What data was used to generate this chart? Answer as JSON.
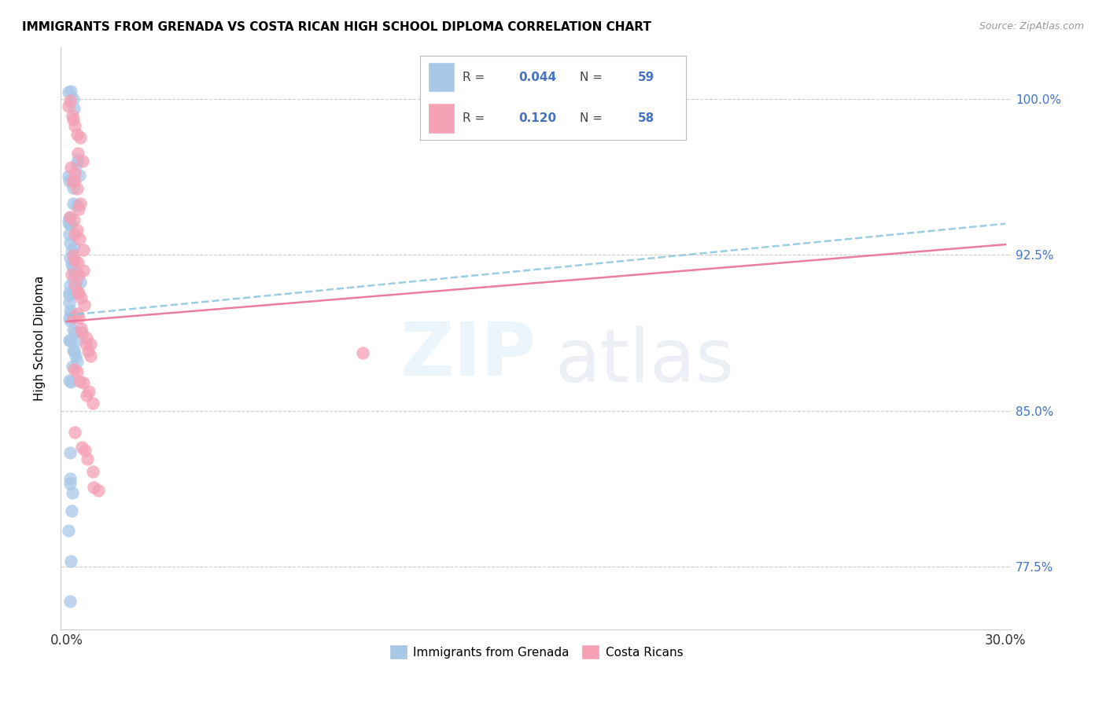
{
  "title": "IMMIGRANTS FROM GRENADA VS COSTA RICAN HIGH SCHOOL DIPLOMA CORRELATION CHART",
  "source": "Source: ZipAtlas.com",
  "ylabel": "High School Diploma",
  "yticks": [
    0.775,
    0.85,
    0.925,
    1.0
  ],
  "ytick_labels": [
    "77.5%",
    "85.0%",
    "92.5%",
    "100.0%"
  ],
  "color_blue": "#a8c8e8",
  "color_pink": "#f4a0b5",
  "trendline_blue": "#90c8e0",
  "trendline_pink": "#e87090",
  "xlim": [
    -0.002,
    0.302
  ],
  "ylim": [
    0.745,
    1.025
  ],
  "blue_x": [
    0.001,
    0.001,
    0.002,
    0.002,
    0.003,
    0.003,
    0.004,
    0.001,
    0.001,
    0.002,
    0.002,
    0.003,
    0.001,
    0.001,
    0.001,
    0.001,
    0.001,
    0.001,
    0.002,
    0.002,
    0.001,
    0.001,
    0.002,
    0.003,
    0.002,
    0.003,
    0.002,
    0.004,
    0.003,
    0.001,
    0.001,
    0.002,
    0.001,
    0.001,
    0.001,
    0.001,
    0.002,
    0.001,
    0.001,
    0.003,
    0.002,
    0.004,
    0.001,
    0.001,
    0.002,
    0.002,
    0.003,
    0.003,
    0.002,
    0.001,
    0.001,
    0.001,
    0.001,
    0.001,
    0.002,
    0.002,
    0.001,
    0.001,
    0.001
  ],
  "blue_y": [
    1.002,
    1.001,
    0.999,
    0.998,
    0.972,
    0.968,
    0.965,
    0.96,
    0.958,
    0.955,
    0.95,
    0.947,
    0.945,
    0.942,
    0.94,
    0.938,
    0.935,
    0.933,
    0.93,
    0.928,
    0.925,
    0.923,
    0.92,
    0.918,
    0.916,
    0.915,
    0.913,
    0.912,
    0.91,
    0.908,
    0.906,
    0.905,
    0.903,
    0.901,
    0.9,
    0.898,
    0.895,
    0.893,
    0.892,
    0.89,
    0.888,
    0.887,
    0.885,
    0.882,
    0.88,
    0.878,
    0.875,
    0.872,
    0.87,
    0.867,
    0.865,
    0.83,
    0.82,
    0.815,
    0.81,
    0.8,
    0.79,
    0.78,
    0.76
  ],
  "pink_x": [
    0.001,
    0.001,
    0.002,
    0.002,
    0.003,
    0.003,
    0.004,
    0.004,
    0.005,
    0.001,
    0.002,
    0.002,
    0.003,
    0.003,
    0.004,
    0.004,
    0.001,
    0.002,
    0.003,
    0.003,
    0.004,
    0.005,
    0.002,
    0.003,
    0.004,
    0.004,
    0.005,
    0.002,
    0.003,
    0.004,
    0.004,
    0.005,
    0.006,
    0.002,
    0.003,
    0.004,
    0.005,
    0.005,
    0.006,
    0.006,
    0.007,
    0.007,
    0.008,
    0.002,
    0.003,
    0.004,
    0.005,
    0.006,
    0.007,
    0.008,
    0.003,
    0.005,
    0.006,
    0.007,
    0.008,
    0.009,
    0.01,
    0.095
  ],
  "pink_y": [
    1.0,
    0.997,
    0.994,
    0.99,
    0.987,
    0.984,
    0.98,
    0.976,
    0.972,
    0.968,
    0.965,
    0.962,
    0.958,
    0.955,
    0.952,
    0.948,
    0.945,
    0.942,
    0.938,
    0.935,
    0.93,
    0.928,
    0.924,
    0.922,
    0.92,
    0.918,
    0.916,
    0.913,
    0.91,
    0.908,
    0.906,
    0.903,
    0.9,
    0.897,
    0.894,
    0.892,
    0.89,
    0.887,
    0.885,
    0.882,
    0.88,
    0.878,
    0.875,
    0.872,
    0.87,
    0.866,
    0.863,
    0.86,
    0.857,
    0.854,
    0.84,
    0.835,
    0.83,
    0.825,
    0.82,
    0.815,
    0.81,
    0.88
  ],
  "blue_trend": [
    0.896,
    0.94
  ],
  "pink_trend": [
    0.893,
    0.93
  ],
  "blue_trend_x": [
    0.0,
    0.3
  ],
  "pink_trend_x": [
    0.0,
    0.3
  ]
}
